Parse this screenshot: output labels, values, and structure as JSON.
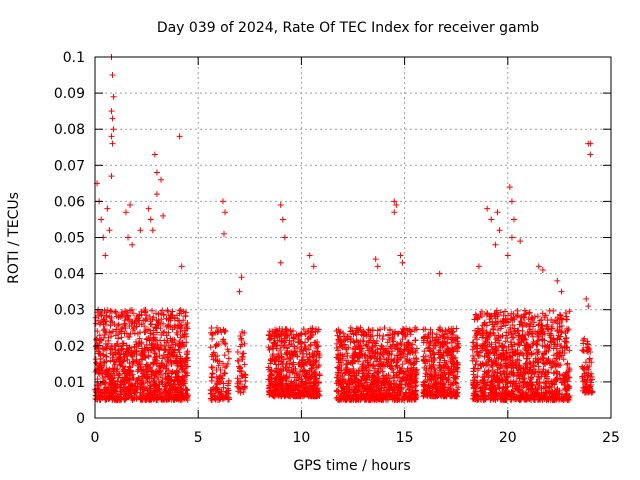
{
  "chart_data": {
    "type": "scatter",
    "title": "Day 039 of 2024, Rate Of TEC Index for receiver gamb",
    "xlabel": "GPS time / hours",
    "ylabel": "ROTI / TECUs",
    "xlim": [
      0,
      25
    ],
    "ylim": [
      0,
      0.1
    ],
    "x_ticks": [
      0,
      5,
      10,
      15,
      20,
      25
    ],
    "x_tick_labels": [
      "0",
      "5",
      "10",
      "15",
      "20",
      "25"
    ],
    "y_ticks": [
      0,
      0.01,
      0.02,
      0.03,
      0.04,
      0.05,
      0.06,
      0.07,
      0.08,
      0.09,
      0.1
    ],
    "y_tick_labels": [
      "0",
      "0.01",
      "0.02",
      "0.03",
      "0.04",
      "0.05",
      "0.06",
      "0.07",
      "0.08",
      "0.09",
      "0.1"
    ],
    "grid": true,
    "marker": "+",
    "series": [
      {
        "name": "ROTI",
        "color": "#ff0000",
        "segments": [
          {
            "x_start": 0.0,
            "x_end": 4.5,
            "y_min": 0.005,
            "y_max": 0.03,
            "density": 26
          },
          {
            "x_start": 5.6,
            "x_end": 6.5,
            "y_min": 0.005,
            "y_max": 0.025,
            "density": 14
          },
          {
            "x_start": 6.9,
            "x_end": 7.3,
            "y_min": 0.007,
            "y_max": 0.024,
            "density": 12
          },
          {
            "x_start": 8.4,
            "x_end": 10.9,
            "y_min": 0.006,
            "y_max": 0.025,
            "density": 24
          },
          {
            "x_start": 11.7,
            "x_end": 15.6,
            "y_min": 0.005,
            "y_max": 0.025,
            "density": 24
          },
          {
            "x_start": 15.9,
            "x_end": 17.6,
            "y_min": 0.006,
            "y_max": 0.025,
            "density": 24
          },
          {
            "x_start": 18.3,
            "x_end": 23.0,
            "y_min": 0.005,
            "y_max": 0.03,
            "density": 24
          },
          {
            "x_start": 23.6,
            "x_end": 24.1,
            "y_min": 0.007,
            "y_max": 0.022,
            "density": 16
          }
        ],
        "points": [
          [
            0.1,
            0.065
          ],
          [
            0.2,
            0.06
          ],
          [
            0.3,
            0.055
          ],
          [
            0.4,
            0.05
          ],
          [
            0.5,
            0.045
          ],
          [
            0.8,
            0.1
          ],
          [
            0.85,
            0.095
          ],
          [
            0.9,
            0.089
          ],
          [
            0.8,
            0.085
          ],
          [
            0.85,
            0.083
          ],
          [
            0.9,
            0.08
          ],
          [
            0.8,
            0.078
          ],
          [
            0.85,
            0.076
          ],
          [
            0.8,
            0.067
          ],
          [
            0.6,
            0.058
          ],
          [
            0.7,
            0.052
          ],
          [
            1.5,
            0.057
          ],
          [
            1.7,
            0.059
          ],
          [
            1.6,
            0.05
          ],
          [
            1.8,
            0.048
          ],
          [
            2.2,
            0.052
          ],
          [
            2.6,
            0.058
          ],
          [
            2.7,
            0.055
          ],
          [
            2.8,
            0.052
          ],
          [
            2.9,
            0.073
          ],
          [
            3.0,
            0.068
          ],
          [
            3.2,
            0.066
          ],
          [
            3.0,
            0.062
          ],
          [
            3.3,
            0.056
          ],
          [
            4.1,
            0.078
          ],
          [
            4.2,
            0.042
          ],
          [
            6.2,
            0.06
          ],
          [
            6.3,
            0.057
          ],
          [
            6.25,
            0.051
          ],
          [
            7.1,
            0.039
          ],
          [
            7.0,
            0.035
          ],
          [
            9.0,
            0.059
          ],
          [
            9.1,
            0.055
          ],
          [
            9.2,
            0.05
          ],
          [
            9.0,
            0.043
          ],
          [
            10.4,
            0.045
          ],
          [
            10.6,
            0.042
          ],
          [
            13.6,
            0.044
          ],
          [
            13.7,
            0.042
          ],
          [
            14.5,
            0.06
          ],
          [
            14.6,
            0.059
          ],
          [
            14.5,
            0.057
          ],
          [
            14.8,
            0.045
          ],
          [
            14.9,
            0.043
          ],
          [
            16.7,
            0.04
          ],
          [
            18.6,
            0.042
          ],
          [
            19.0,
            0.058
          ],
          [
            19.2,
            0.055
          ],
          [
            19.5,
            0.057
          ],
          [
            19.6,
            0.052
          ],
          [
            19.4,
            0.048
          ],
          [
            20.1,
            0.064
          ],
          [
            20.2,
            0.06
          ],
          [
            20.3,
            0.055
          ],
          [
            20.2,
            0.05
          ],
          [
            20.0,
            0.045
          ],
          [
            20.6,
            0.049
          ],
          [
            21.5,
            0.042
          ],
          [
            21.7,
            0.041
          ],
          [
            22.4,
            0.038
          ],
          [
            22.6,
            0.035
          ],
          [
            23.9,
            0.076
          ],
          [
            24.0,
            0.076
          ],
          [
            24.0,
            0.073
          ],
          [
            23.8,
            0.033
          ],
          [
            23.9,
            0.031
          ]
        ]
      }
    ]
  }
}
